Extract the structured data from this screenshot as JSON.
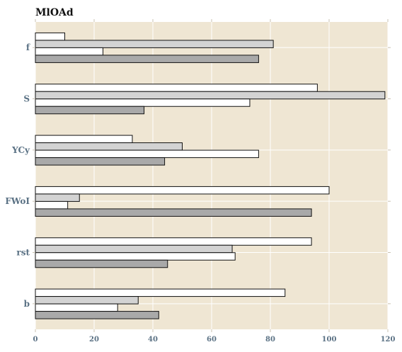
{
  "chart_data": {
    "type": "bar",
    "orientation": "horizontal",
    "title": "MlOAd",
    "xlabel": "",
    "ylabel": "",
    "categories": [
      "f",
      "S",
      "YCy",
      "FWoI",
      "rst",
      "b"
    ],
    "series": [
      {
        "values": [
          10,
          96,
          33,
          100,
          94,
          85
        ],
        "color": "#ffffff"
      },
      {
        "values": [
          81,
          119,
          50,
          15,
          67,
          35
        ],
        "color": "#d3d3d3"
      },
      {
        "values": [
          23,
          73,
          76,
          11,
          68,
          28
        ],
        "color": "#ffffff"
      },
      {
        "values": [
          76,
          37,
          44,
          94,
          45,
          42
        ],
        "color": "#a9a9a9"
      }
    ],
    "xlim": [
      0,
      120
    ],
    "xticks": [
      "0",
      "20",
      "40",
      "60",
      "80",
      "100",
      "120"
    ],
    "grid": true,
    "background": "#efe6d3",
    "legend": "none"
  }
}
